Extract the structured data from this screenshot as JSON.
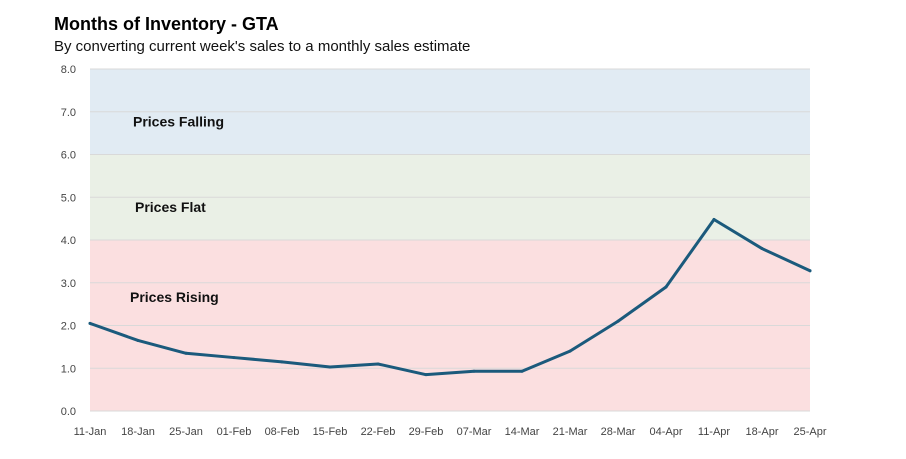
{
  "chart_data": {
    "type": "line",
    "title": "Months of Inventory - GTA",
    "subtitle": "By converting current week's sales to a monthly sales estimate",
    "xlabel": "",
    "ylabel": "",
    "ylim": [
      0,
      8
    ],
    "yticks": [
      "0.0",
      "1.0",
      "2.0",
      "3.0",
      "4.0",
      "5.0",
      "6.0",
      "7.0",
      "8.0"
    ],
    "categories": [
      "11-Jan",
      "18-Jan",
      "25-Jan",
      "01-Feb",
      "08-Feb",
      "15-Feb",
      "22-Feb",
      "29-Feb",
      "07-Mar",
      "14-Mar",
      "21-Mar",
      "28-Mar",
      "04-Apr",
      "11-Apr",
      "18-Apr",
      "25-Apr"
    ],
    "series": [
      {
        "values": [
          2.05,
          1.65,
          1.35,
          1.25,
          1.15,
          1.03,
          1.1,
          0.85,
          0.93,
          0.93,
          1.4,
          2.1,
          2.9,
          4.48,
          3.8,
          3.28
        ],
        "color": "#1b5a7c"
      }
    ],
    "bands": [
      {
        "label": "Prices Rising",
        "from": 0,
        "to": 4,
        "color": "#fbdfe0"
      },
      {
        "label": "Prices Flat",
        "from": 4,
        "to": 6,
        "color": "#eaf0e6"
      },
      {
        "label": "Prices Falling",
        "from": 6,
        "to": 8,
        "color": "#e1ebf3"
      }
    ],
    "grid": true,
    "legend": "none"
  }
}
